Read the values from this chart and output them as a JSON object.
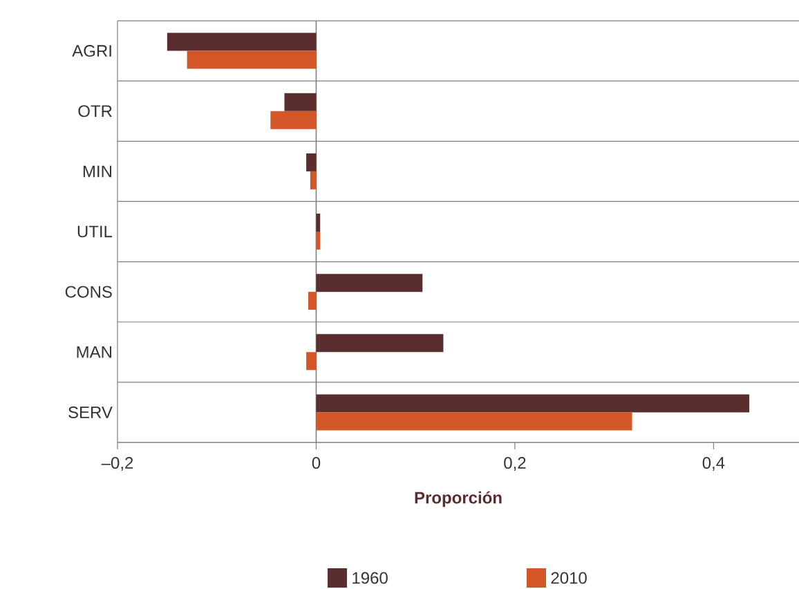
{
  "chart_data": {
    "type": "bar",
    "orientation": "horizontal",
    "categories": [
      "AGRI",
      "OTR",
      "MIN",
      "UTIL",
      "CONS",
      "MAN",
      "SERV"
    ],
    "series": [
      {
        "name": "1960",
        "color": "#5a2d2f",
        "values": [
          -0.15,
          -0.032,
          -0.01,
          0.004,
          0.107,
          0.128,
          0.436
        ]
      },
      {
        "name": "2010",
        "color": "#d4572a",
        "values": [
          -0.13,
          -0.046,
          -0.006,
          0.004,
          -0.008,
          -0.01,
          0.318
        ]
      }
    ],
    "xlabel": "Proporción",
    "xlim": [
      -0.2,
      0.486
    ],
    "xticks": [
      {
        "value": -0.2,
        "label": "–0,2"
      },
      0,
      {
        "value": 0.2,
        "label": "0,2"
      },
      {
        "value": 0.4,
        "label": "0,4"
      }
    ],
    "grid": "y",
    "legend": "bottom"
  }
}
